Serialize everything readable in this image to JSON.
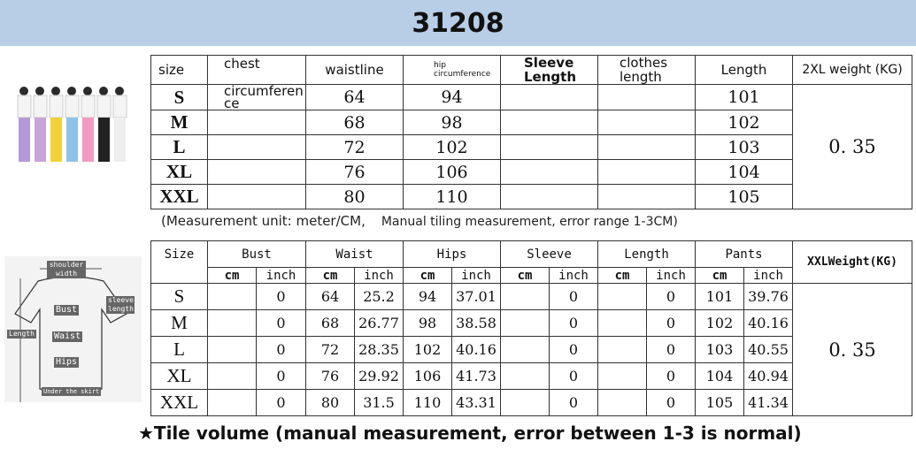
{
  "title": "31208",
  "table1": {
    "headers": [
      "size",
      "chest",
      "waistline",
      "hip circumference",
      "Sleeve Length",
      "clothes length",
      "Length",
      "2XL weight (KG)"
    ],
    "chest_note": "circumference",
    "rows": [
      {
        "size": "S",
        "waist": "64",
        "hip": "94",
        "length": "101"
      },
      {
        "size": "M",
        "waist": "68",
        "hip": "98",
        "length": "102"
      },
      {
        "size": "L",
        "waist": "72",
        "hip": "102",
        "length": "103"
      },
      {
        "size": "XL",
        "waist": "76",
        "hip": "106",
        "length": "104"
      },
      {
        "size": "XXL",
        "waist": "80",
        "hip": "110",
        "length": "105"
      }
    ],
    "weight": "0. 35"
  },
  "note": {
    "unit": "(Measurement unit: meter/CM,",
    "error": "Manual tiling measurement, error range 1-3CM)"
  },
  "table2": {
    "headers": [
      "Size",
      "Bust",
      "Waist",
      "Hips",
      "Sleeve",
      "Length",
      "Pants",
      "XXLWeight(KG)"
    ],
    "cm": "cm",
    "inch": "inch",
    "rows": [
      {
        "size": "S",
        "bust_in": "0",
        "waist_cm": "64",
        "waist_in": "25.2",
        "hips_cm": "94",
        "hips_in": "37.01",
        "sleeve_in": "0",
        "length_in": "0",
        "pants_cm": "101",
        "pants_in": "39.76"
      },
      {
        "size": "M",
        "bust_in": "0",
        "waist_cm": "68",
        "waist_in": "26.77",
        "hips_cm": "98",
        "hips_in": "38.58",
        "sleeve_in": "0",
        "length_in": "0",
        "pants_cm": "102",
        "pants_in": "40.16"
      },
      {
        "size": "L",
        "bust_in": "0",
        "waist_cm": "72",
        "waist_in": "28.35",
        "hips_cm": "102",
        "hips_in": "40.16",
        "sleeve_in": "0",
        "length_in": "0",
        "pants_cm": "103",
        "pants_in": "40.55"
      },
      {
        "size": "XL",
        "bust_in": "0",
        "waist_cm": "76",
        "waist_in": "29.92",
        "hips_cm": "106",
        "hips_in": "41.73",
        "sleeve_in": "0",
        "length_in": "0",
        "pants_cm": "104",
        "pants_in": "40.94"
      },
      {
        "size": "XXL",
        "bust_in": "0",
        "waist_cm": "80",
        "waist_in": "31.5",
        "hips_cm": "110",
        "hips_in": "43.31",
        "sleeve_in": "0",
        "length_in": "0",
        "pants_cm": "105",
        "pants_in": "41.34"
      }
    ],
    "weight": "0. 35"
  },
  "diagram": {
    "shoulder": "shoulder width",
    "sleeve": "sleeve length",
    "bust": "Bust",
    "waist": "Waist",
    "hips": "Hips",
    "length": "Length",
    "hem": "Under the skirt"
  },
  "footer": "★Tile volume (manual measurement, error between 1-3 is normal)"
}
